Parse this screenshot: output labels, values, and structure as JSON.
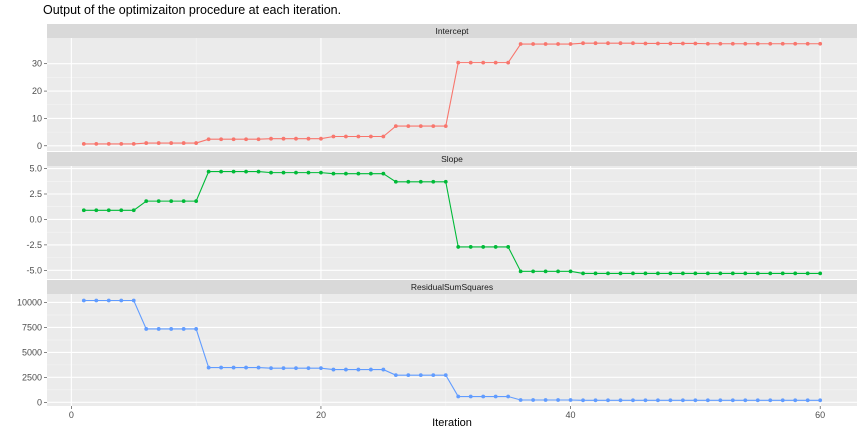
{
  "chart_data": {
    "type": "line",
    "title": "Output of the optimizaiton procedure at each iteration.",
    "xlabel": "Iteration",
    "xlim": [
      -1.95,
      62.95
    ],
    "x_ticks": [
      0,
      20,
      40,
      60
    ],
    "x_tick_labels": [
      "0",
      "20",
      "40",
      "60"
    ],
    "x": [
      1,
      2,
      3,
      4,
      5,
      6,
      7,
      8,
      9,
      10,
      11,
      12,
      13,
      14,
      15,
      16,
      17,
      18,
      19,
      20,
      21,
      22,
      23,
      24,
      25,
      26,
      27,
      28,
      29,
      30,
      31,
      32,
      33,
      34,
      35,
      36,
      37,
      38,
      39,
      40,
      41,
      42,
      43,
      44,
      45,
      46,
      47,
      48,
      49,
      50,
      51,
      52,
      53,
      54,
      55,
      56,
      57,
      58,
      59,
      60
    ],
    "grid": true,
    "panels": [
      {
        "name": "Intercept",
        "color": "#F8766D",
        "ylim": [
          -1.9,
          39.4
        ],
        "y_ticks": [
          0,
          10,
          20,
          30
        ],
        "y_tick_labels": [
          "0",
          "10",
          "20",
          "30"
        ],
        "values": [
          0.7,
          0.7,
          0.7,
          0.7,
          0.7,
          1.0,
          1.0,
          1.0,
          1.0,
          1.0,
          2.4,
          2.4,
          2.4,
          2.4,
          2.4,
          2.6,
          2.6,
          2.6,
          2.6,
          2.6,
          3.4,
          3.4,
          3.4,
          3.4,
          3.4,
          7.2,
          7.2,
          7.2,
          7.2,
          7.2,
          30.4,
          30.4,
          30.4,
          30.4,
          30.4,
          37.2,
          37.2,
          37.2,
          37.2,
          37.2,
          37.5,
          37.5,
          37.5,
          37.5,
          37.5,
          37.4,
          37.4,
          37.4,
          37.4,
          37.4,
          37.3,
          37.3,
          37.3,
          37.3,
          37.3,
          37.3,
          37.3,
          37.3,
          37.3,
          37.3
        ]
      },
      {
        "name": "Slope",
        "color": "#00BA38",
        "ylim": [
          -5.85,
          5.25
        ],
        "y_ticks": [
          5.0,
          2.5,
          0.0,
          -2.5,
          -5.0
        ],
        "y_tick_labels": [
          "5.0",
          "2.5",
          "0.0",
          "-2.5",
          "-5.0"
        ],
        "values": [
          0.9,
          0.9,
          0.9,
          0.9,
          0.9,
          1.8,
          1.8,
          1.8,
          1.8,
          1.8,
          4.7,
          4.7,
          4.7,
          4.7,
          4.7,
          4.6,
          4.6,
          4.6,
          4.6,
          4.6,
          4.5,
          4.5,
          4.5,
          4.5,
          4.5,
          3.7,
          3.7,
          3.7,
          3.7,
          3.7,
          -2.7,
          -2.7,
          -2.7,
          -2.7,
          -2.7,
          -5.1,
          -5.1,
          -5.1,
          -5.1,
          -5.1,
          -5.3,
          -5.3,
          -5.3,
          -5.3,
          -5.3,
          -5.3,
          -5.3,
          -5.3,
          -5.3,
          -5.3,
          -5.3,
          -5.3,
          -5.3,
          -5.3,
          -5.3,
          -5.3,
          -5.3,
          -5.3,
          -5.3,
          -5.3
        ]
      },
      {
        "name": "ResidualSumSquares",
        "color": "#619CFF",
        "ylim": [
          -370,
          10850
        ],
        "y_ticks": [
          0,
          2500,
          5000,
          7500,
          10000
        ],
        "y_tick_labels": [
          "0",
          "2500",
          "5000",
          "7500",
          "10000"
        ],
        "values": [
          10200,
          10200,
          10200,
          10200,
          10200,
          7350,
          7350,
          7350,
          7350,
          7350,
          3480,
          3480,
          3480,
          3480,
          3480,
          3420,
          3420,
          3420,
          3420,
          3420,
          3280,
          3280,
          3280,
          3280,
          3280,
          2720,
          2720,
          2720,
          2720,
          2720,
          580,
          580,
          580,
          580,
          580,
          230,
          230,
          230,
          230,
          230,
          200,
          200,
          200,
          200,
          200,
          200,
          200,
          200,
          200,
          200,
          200,
          200,
          200,
          200,
          200,
          200,
          200,
          200,
          200,
          200
        ]
      }
    ]
  }
}
